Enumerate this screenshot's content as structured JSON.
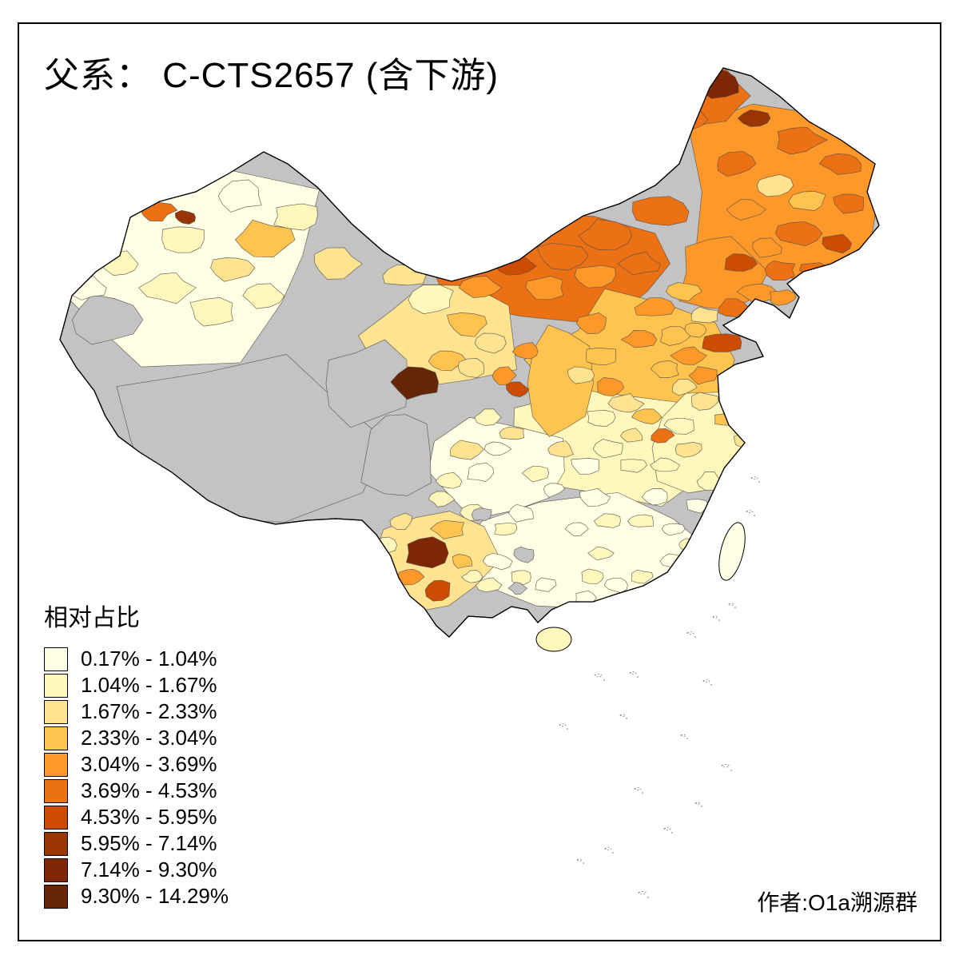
{
  "title": "父系： C-CTS2657 (含下游)",
  "legend": {
    "title": "相对占比",
    "classes": [
      {
        "label": "0.17% - 1.04%",
        "color": "#FFFFE5"
      },
      {
        "label": "1.04% - 1.67%",
        "color": "#FFF7BC"
      },
      {
        "label": "1.67% - 2.33%",
        "color": "#FEE391"
      },
      {
        "label": "2.33% - 3.04%",
        "color": "#FEC44F"
      },
      {
        "label": "3.04% - 3.69%",
        "color": "#FE9929"
      },
      {
        "label": "3.69% - 4.53%",
        "color": "#EC7014"
      },
      {
        "label": "4.53% - 5.95%",
        "color": "#CC4C02"
      },
      {
        "label": "5.95% - 7.14%",
        "color": "#993404"
      },
      {
        "label": "7.14% - 9.30%",
        "color": "#7F2704"
      },
      {
        "label": "9.30% - 14.29%",
        "color": "#662506"
      }
    ],
    "na_color": "#C3C3C3"
  },
  "credit": "作者:O1a溯源群",
  "map": {
    "subject": "China prefecture-level choropleth of paternal haplogroup C-CTS2657 relative frequency",
    "outline_color": "#000000",
    "boundary_color": "#55504a"
  }
}
